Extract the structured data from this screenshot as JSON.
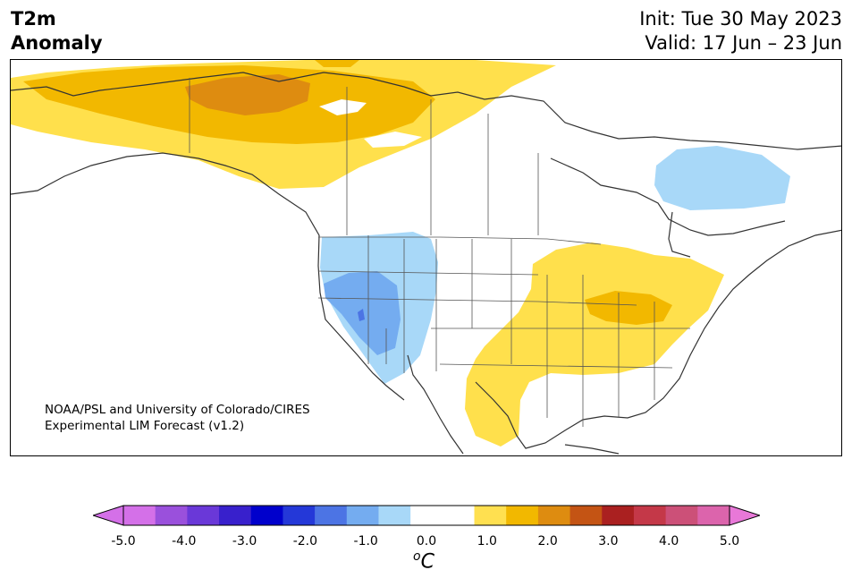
{
  "title": {
    "left_line1": "T2m",
    "left_line2": "Anomaly",
    "init": "Init: Tue 30 May 2023",
    "valid": "Valid: 17 Jun – 23 Jun"
  },
  "credit": {
    "line1": "NOAA/PSL and University of Colorado/CIRES",
    "line2": "Experimental LIM Forecast (v1.2)"
  },
  "colorbar": {
    "unit_base": "C",
    "unit_sup": "o",
    "tick_labels": [
      "-5.0",
      "-4.0",
      "-3.0",
      "-2.0",
      "-1.0",
      "0.0",
      "1.0",
      "2.0",
      "3.0",
      "4.0",
      "5.0"
    ],
    "colors": [
      "#d470e8",
      "#9a50dc",
      "#6a38d8",
      "#3820cc",
      "#0000cc",
      "#2438d8",
      "#4c74e4",
      "#74acf0",
      "#a8d8f8",
      "#ffffff",
      "#ffffff",
      "#ffe050",
      "#f2b800",
      "#de8c10",
      "#c45414",
      "#aa2020",
      "#c43848",
      "#cc5078",
      "#dc64ac"
    ],
    "under_color": "#d470e8",
    "over_color": "#e878d8"
  },
  "legend_colors": {
    "warm_weak": "#ffe04c",
    "warm_mid": "#f2b800",
    "warm_strong": "#de8c10",
    "cool_weak": "#a8d8f8",
    "cool_mid": "#74acf0",
    "cool_strong": "#4c74e4"
  }
}
